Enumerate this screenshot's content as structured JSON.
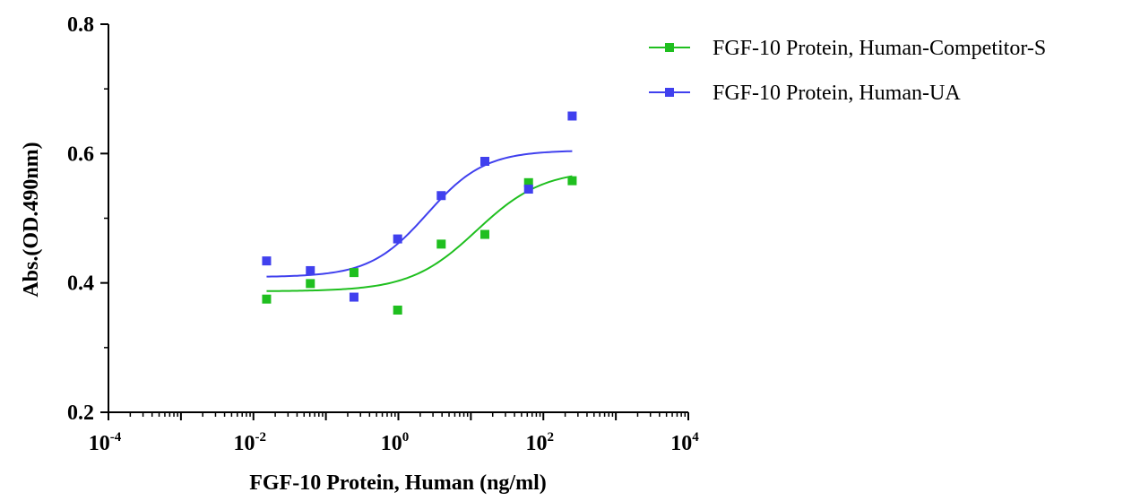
{
  "chart_data": {
    "type": "scatter",
    "x_scale": "log10",
    "xlim": [
      0.0001,
      10000
    ],
    "ylim": [
      0.2,
      0.8
    ],
    "xlabel": "FGF-10 Protein, Human  (ng/ml)",
    "ylabel": "Abs.(OD.490nm)",
    "x_ticks": [
      {
        "value": 0.0001,
        "base": "10",
        "exp": "-4"
      },
      {
        "value": 0.01,
        "base": "10",
        "exp": "-2"
      },
      {
        "value": 1,
        "base": "10",
        "exp": "0"
      },
      {
        "value": 100,
        "base": "10",
        "exp": "2"
      },
      {
        "value": 10000,
        "base": "10",
        "exp": "4"
      }
    ],
    "y_ticks": [
      {
        "value": 0.2,
        "label": "0.2"
      },
      {
        "value": 0.4,
        "label": "0.4"
      },
      {
        "value": 0.6,
        "label": "0.6"
      },
      {
        "value": 0.8,
        "label": "0.8"
      }
    ],
    "legend_position": "top-right",
    "series": [
      {
        "name": "FGF-10 Protein, Human-Competitor-S",
        "color": "#1fbf1f",
        "marker": "square",
        "points": [
          {
            "x": 0.0152,
            "y": 0.375
          },
          {
            "x": 0.061,
            "y": 0.399
          },
          {
            "x": 0.244,
            "y": 0.416
          },
          {
            "x": 0.977,
            "y": 0.358
          },
          {
            "x": 3.9,
            "y": 0.46
          },
          {
            "x": 15.6,
            "y": 0.475
          },
          {
            "x": 62.5,
            "y": 0.555
          },
          {
            "x": 250,
            "y": 0.558
          }
        ],
        "fit": {
          "bottom": 0.387,
          "top": 0.575,
          "ec50": 12,
          "hill": 0.95
        }
      },
      {
        "name": "FGF-10 Protein, Human-UA",
        "color": "#4040ee",
        "marker": "square",
        "points": [
          {
            "x": 0.0152,
            "y": 0.434
          },
          {
            "x": 0.061,
            "y": 0.419
          },
          {
            "x": 0.244,
            "y": 0.378
          },
          {
            "x": 0.977,
            "y": 0.468
          },
          {
            "x": 3.9,
            "y": 0.535
          },
          {
            "x": 15.6,
            "y": 0.588
          },
          {
            "x": 62.5,
            "y": 0.545
          },
          {
            "x": 250,
            "y": 0.658
          }
        ],
        "fit": {
          "bottom": 0.409,
          "top": 0.605,
          "ec50": 2.5,
          "hill": 1.1
        }
      }
    ]
  }
}
